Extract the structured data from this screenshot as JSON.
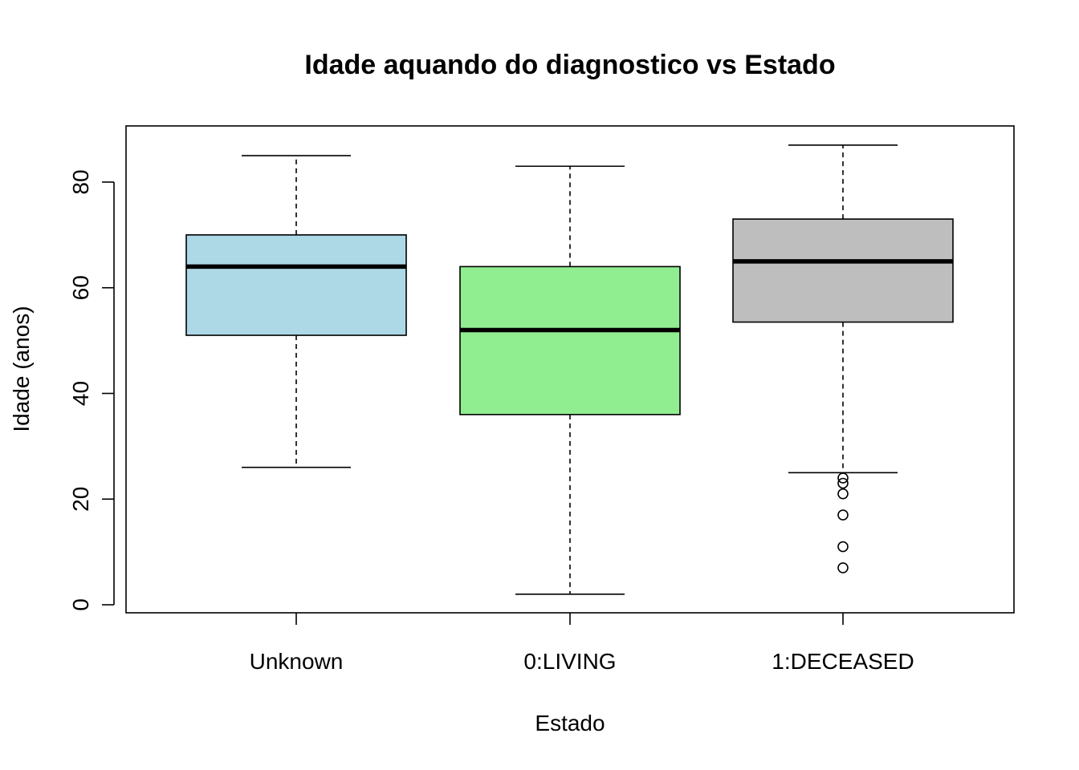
{
  "chart_data": {
    "type": "box",
    "title": "Idade aquando do diagnostico vs Estado",
    "xlabel": "Estado",
    "ylabel": "Idade (anos)",
    "ylim": [
      -1.5,
      90.5
    ],
    "yticks": [
      0,
      20,
      40,
      60,
      80
    ],
    "categories": [
      "Unknown",
      "0:LIVING",
      "1:DECEASED"
    ],
    "boxes": [
      {
        "category": "Unknown",
        "whisker_low": 26,
        "q1": 51,
        "median": 64,
        "q3": 70,
        "whisker_high": 85,
        "outliers": [],
        "color": "#add8e6"
      },
      {
        "category": "0:LIVING",
        "whisker_low": 2,
        "q1": 36,
        "median": 52,
        "q3": 64,
        "whisker_high": 83,
        "outliers": [],
        "color": "#90ee90"
      },
      {
        "category": "1:DECEASED",
        "whisker_low": 25,
        "q1": 53.5,
        "median": 65,
        "q3": 73,
        "whisker_high": 87,
        "outliers": [
          7,
          11,
          17,
          21,
          23,
          24
        ],
        "color": "#bebebe"
      }
    ],
    "grid": false,
    "legend": "none"
  }
}
